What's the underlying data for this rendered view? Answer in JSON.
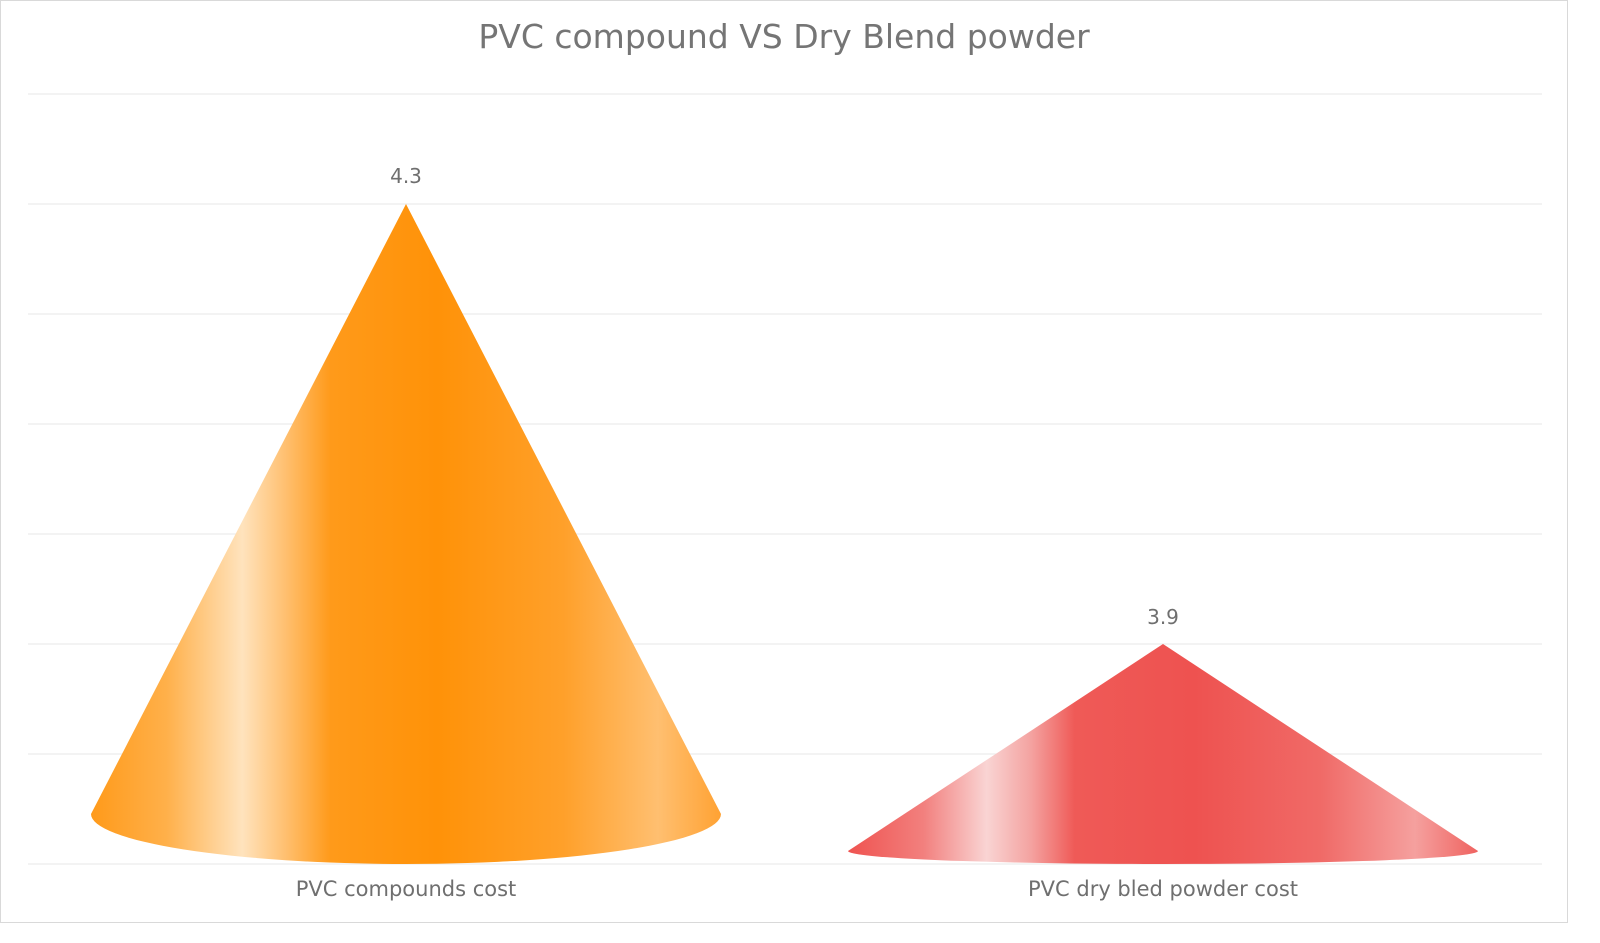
{
  "chart_data": {
    "type": "bar",
    "subtype": "3d-cone",
    "title": "PVC compound VS Dry Blend powder",
    "categories": [
      "PVC compounds cost",
      "PVC dry bled powder cost"
    ],
    "values": [
      4.3,
      3.9
    ],
    "data_labels": [
      "4.3",
      "3.9"
    ],
    "colors": [
      "#ff9510",
      "#ef5350"
    ],
    "xlabel": "",
    "ylabel": "",
    "ylim": [
      3.7,
      4.4
    ],
    "y_tick_step": 0.1,
    "y_axis_labels_visible": false,
    "grid": true,
    "legend": "none"
  }
}
